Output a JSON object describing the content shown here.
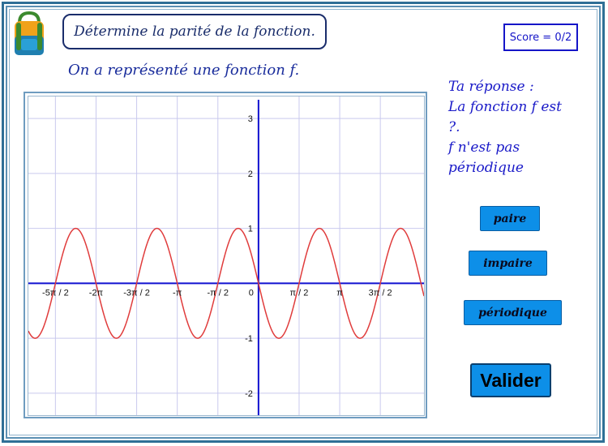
{
  "header": {
    "title": "Détermine la parité de la fonction.",
    "score": "Score = 0/2"
  },
  "question": {
    "text": "On a représenté une fonction f."
  },
  "answer_panel": {
    "line1": "Ta réponse :",
    "line2": "La fonction f est",
    "line3": "?.",
    "line4": "f n'est pas",
    "line5": "périodique"
  },
  "buttons": {
    "paire": "paire",
    "impaire": "impaire",
    "periodique": "périodique",
    "valider": "Valider"
  },
  "colors": {
    "curve": "#e03c3c",
    "axes": "#1010d0",
    "grid": "#c9c9ee",
    "button": "#0d8fe8"
  },
  "chart_data": {
    "type": "line",
    "function": "f(x) = -sin(2x)",
    "xlim": [
      -8.9,
      6.4
    ],
    "ylim": [
      -2.4,
      3.4
    ],
    "x_ticks": [
      {
        "value": -7.854,
        "label": "-5π / 2"
      },
      {
        "value": -6.283,
        "label": "-2π"
      },
      {
        "value": -4.712,
        "label": "-3π / 2"
      },
      {
        "value": -3.1416,
        "label": "-π"
      },
      {
        "value": -1.5708,
        "label": "-π / 2"
      },
      {
        "value": 1.5708,
        "label": "π / 2"
      },
      {
        "value": 3.1416,
        "label": "π"
      },
      {
        "value": 4.712,
        "label": "3π / 2"
      }
    ],
    "origin_label": "0",
    "y_ticks": [
      {
        "value": 3,
        "label": "3"
      },
      {
        "value": 2,
        "label": "2"
      },
      {
        "value": 1,
        "label": "1"
      },
      {
        "value": -1,
        "label": "-1"
      },
      {
        "value": -2,
        "label": "-2"
      }
    ],
    "grid": true
  }
}
